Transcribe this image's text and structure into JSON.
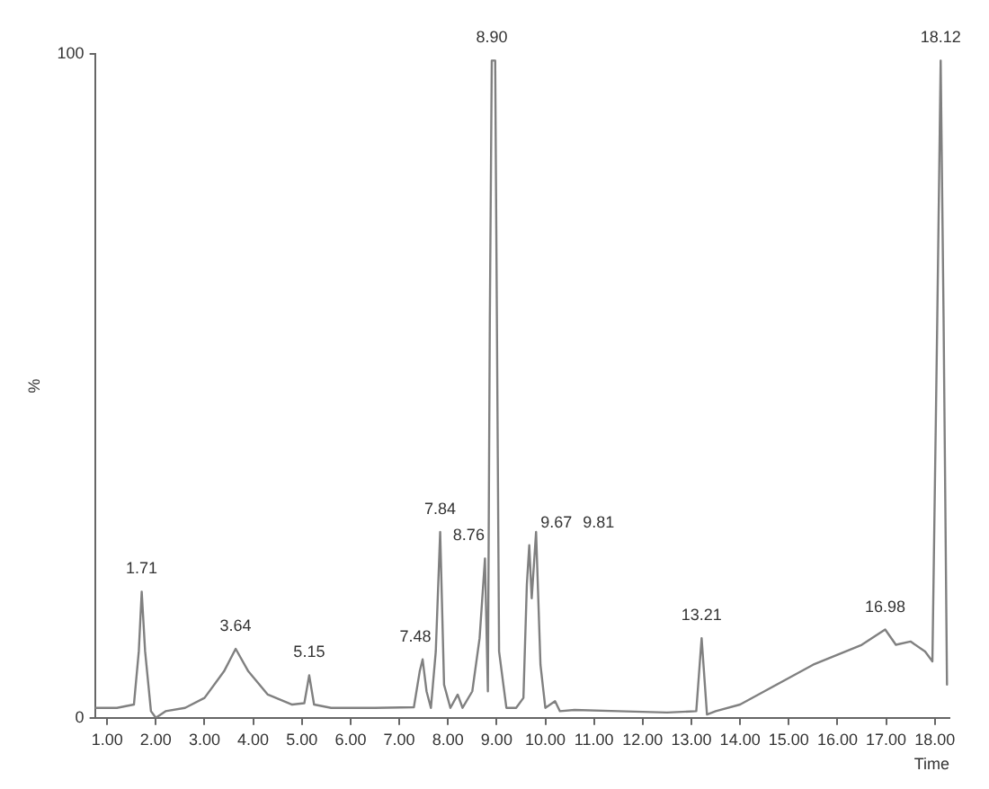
{
  "chart_data": {
    "type": "line",
    "xlabel": "Time",
    "ylabel": "%",
    "xlim": [
      0.75,
      18.3
    ],
    "xticks": [
      {
        "value": 1,
        "label": "1.00"
      },
      {
        "value": 2,
        "label": "2.00"
      },
      {
        "value": 3,
        "label": "3.00"
      },
      {
        "value": 4,
        "label": "4.00"
      },
      {
        "value": 5,
        "label": "5.00"
      },
      {
        "value": 6,
        "label": "6.00"
      },
      {
        "value": 7,
        "label": "7.00"
      },
      {
        "value": 8,
        "label": "8.00"
      },
      {
        "value": 9,
        "label": "9.00"
      },
      {
        "value": 10,
        "label": "10.00"
      },
      {
        "value": 11,
        "label": "11.00"
      },
      {
        "value": 12,
        "label": "12.00"
      },
      {
        "value": 13,
        "label": "13.00"
      },
      {
        "value": 14,
        "label": "14.00"
      },
      {
        "value": 15,
        "label": "15.00"
      },
      {
        "value": 16,
        "label": "16.00"
      },
      {
        "value": 17,
        "label": "17.00"
      },
      {
        "value": 18,
        "label": "18.00"
      }
    ],
    "ylim": [
      0,
      100
    ],
    "yticks": [
      0,
      100
    ],
    "grid": false,
    "legend": false,
    "marker": "none",
    "series": [
      {
        "color": "#808080",
        "x": [
          0.75,
          1.2,
          1.55,
          1.65,
          1.71,
          1.78,
          1.9,
          2.0,
          2.2,
          2.6,
          3.0,
          3.4,
          3.64,
          3.9,
          4.3,
          4.8,
          5.05,
          5.15,
          5.25,
          5.6,
          6.5,
          7.3,
          7.42,
          7.48,
          7.56,
          7.65,
          7.75,
          7.84,
          7.92,
          8.05,
          8.2,
          8.3,
          8.5,
          8.65,
          8.76,
          8.82,
          8.86,
          8.9,
          8.97,
          9.05,
          9.2,
          9.4,
          9.55,
          9.62,
          9.67,
          9.72,
          9.81,
          9.9,
          10.0,
          10.2,
          10.3,
          10.6,
          11.5,
          12.5,
          13.1,
          13.21,
          13.32,
          13.5,
          14.0,
          14.5,
          15.0,
          15.5,
          16.0,
          16.5,
          16.98,
          17.2,
          17.5,
          17.8,
          17.95,
          18.05,
          18.12,
          18.18,
          18.25
        ],
        "values": [
          1.5,
          1.5,
          2,
          10,
          19,
          10,
          1,
          0,
          1,
          1.5,
          3,
          7,
          10.4,
          7,
          3.5,
          2,
          2.2,
          6.4,
          2,
          1.5,
          1.5,
          1.6,
          7,
          8.8,
          4,
          1.5,
          10,
          28,
          5,
          1.5,
          3.5,
          1.5,
          4,
          12,
          24,
          4,
          60,
          99,
          99,
          10,
          1.5,
          1.5,
          3,
          20,
          26,
          18,
          28,
          8,
          1.5,
          2.5,
          1,
          1.2,
          1,
          0.8,
          1,
          12,
          0.5,
          1,
          2,
          4,
          6,
          8,
          9.5,
          11,
          13.3,
          11,
          11.5,
          10,
          8.5,
          60,
          99,
          60,
          5
        ]
      }
    ],
    "annotations": [
      {
        "text": "1.71",
        "x": 1.71,
        "y": 19
      },
      {
        "text": "3.64",
        "x": 3.64,
        "y": 10.4
      },
      {
        "text": "5.15",
        "x": 5.15,
        "y": 6.4
      },
      {
        "text": "7.48",
        "x": 7.48,
        "y": 8.8
      },
      {
        "text": "7.84",
        "x": 7.84,
        "y": 28
      },
      {
        "text": "8.76",
        "x": 8.76,
        "y": 24
      },
      {
        "text": "8.90",
        "x": 8.9,
        "y": 99
      },
      {
        "text": "9.67",
        "x": 9.67,
        "y": 26
      },
      {
        "text": "9.81",
        "x": 9.81,
        "y": 28
      },
      {
        "text": "13.21",
        "x": 13.21,
        "y": 12
      },
      {
        "text": "16.98",
        "x": 16.98,
        "y": 13.3
      },
      {
        "text": "18.12",
        "x": 18.12,
        "y": 99
      }
    ]
  }
}
